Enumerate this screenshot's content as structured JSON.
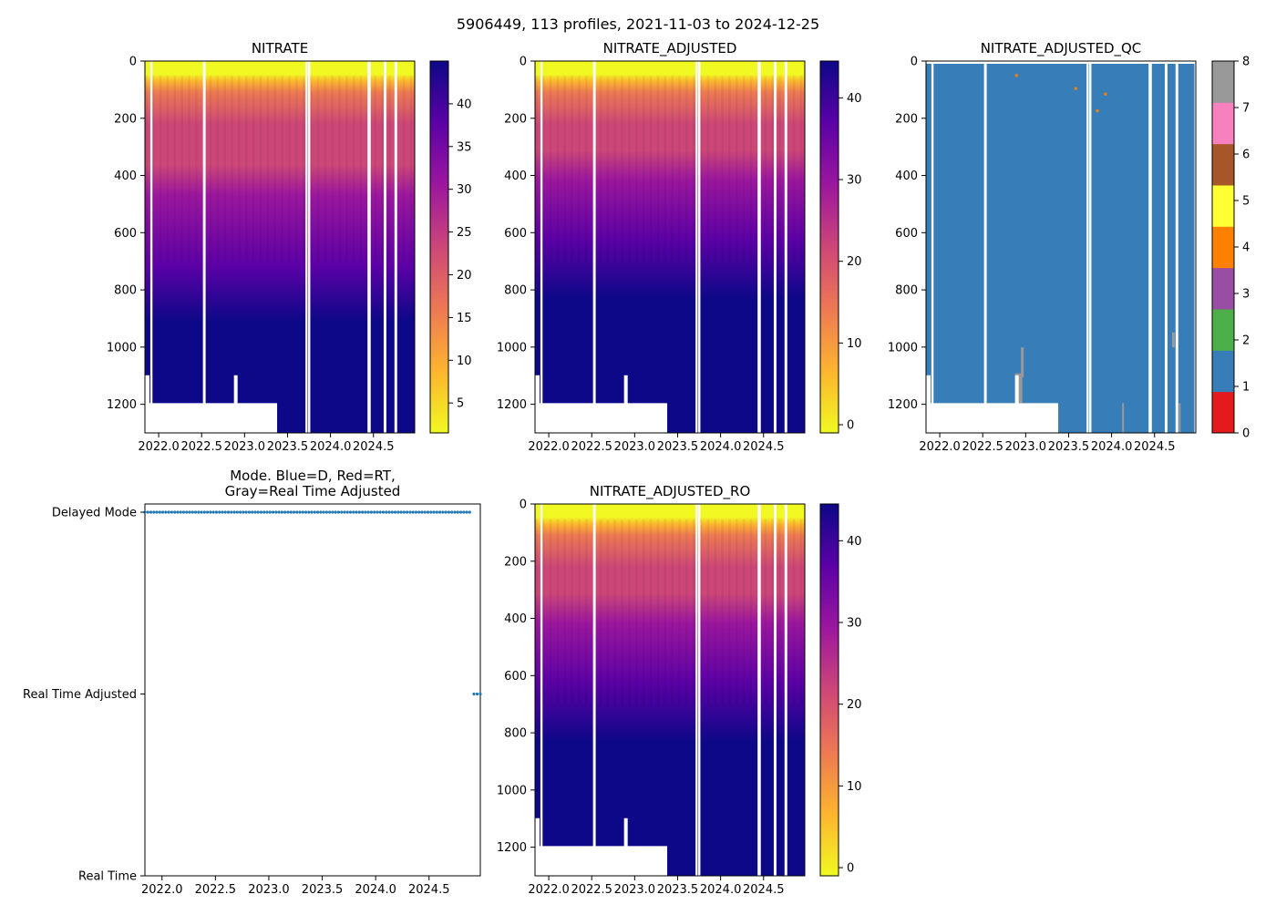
{
  "figure": {
    "suptitle": "5906449, 113 profiles, 2021-11-03 to 2024-12-25"
  },
  "colors": {
    "plasma_r": [
      "#f0f921",
      "#fdb42f",
      "#ed7953",
      "#cc4778",
      "#9c179e",
      "#5c01a6",
      "#0d0887"
    ],
    "qc": [
      "#e41a1c",
      "#377eb8",
      "#4daf4a",
      "#984ea3",
      "#ff7f00",
      "#ffff33",
      "#a65628",
      "#f781bf",
      "#999999"
    ],
    "mode_marker": "#1f77b4"
  },
  "chart_data": [
    {
      "id": "nitrate",
      "type": "heatmap",
      "title": "NITRATE",
      "xlabel": "",
      "ylabel": "",
      "xlim": [
        2021.84,
        2024.98
      ],
      "ylim": [
        1300,
        0
      ],
      "xticks": [
        "2022.0",
        "2022.5",
        "2023.0",
        "2023.5",
        "2024.0",
        "2024.5"
      ],
      "xtick_values": [
        2022.0,
        2022.5,
        2023.0,
        2023.5,
        2024.0,
        2024.5
      ],
      "yticks": [
        "0",
        "200",
        "400",
        "600",
        "800",
        "1000",
        "1200"
      ],
      "ytick_values": [
        0,
        200,
        400,
        600,
        800,
        1000,
        1200
      ],
      "colorbar": {
        "vmin": 1.5,
        "vmax": 45,
        "ticks": [
          "5",
          "10",
          "15",
          "20",
          "25",
          "30",
          "35",
          "40"
        ],
        "tick_values": [
          5,
          10,
          15,
          20,
          25,
          30,
          35,
          40
        ]
      }
    },
    {
      "id": "nitrate_adjusted",
      "type": "heatmap",
      "title": "NITRATE_ADJUSTED",
      "xlabel": "",
      "ylabel": "",
      "xlim": [
        2021.84,
        2024.98
      ],
      "ylim": [
        1300,
        0
      ],
      "xticks": [
        "2022.0",
        "2022.5",
        "2023.0",
        "2023.5",
        "2024.0",
        "2024.5"
      ],
      "xtick_values": [
        2022.0,
        2022.5,
        2023.0,
        2023.5,
        2024.0,
        2024.5
      ],
      "yticks": [
        "0",
        "200",
        "400",
        "600",
        "800",
        "1000",
        "1200"
      ],
      "ytick_values": [
        0,
        200,
        400,
        600,
        800,
        1000,
        1200
      ],
      "colorbar": {
        "vmin": -1,
        "vmax": 44.5,
        "ticks": [
          "0",
          "10",
          "20",
          "30",
          "40"
        ],
        "tick_values": [
          0,
          10,
          20,
          30,
          40
        ]
      }
    },
    {
      "id": "nitrate_adjusted_qc",
      "type": "heatmap",
      "title": "NITRATE_ADJUSTED_QC",
      "xlabel": "",
      "ylabel": "",
      "xlim": [
        2021.84,
        2024.98
      ],
      "ylim": [
        1300,
        0
      ],
      "xticks": [
        "2022.0",
        "2022.5",
        "2023.0",
        "2023.5",
        "2024.0",
        "2024.5"
      ],
      "xtick_values": [
        2022.0,
        2022.5,
        2023.0,
        2023.5,
        2024.0,
        2024.5
      ],
      "yticks": [
        "0",
        "200",
        "400",
        "600",
        "800",
        "1000",
        "1200"
      ],
      "ytick_values": [
        0,
        200,
        400,
        600,
        800,
        1000,
        1200
      ],
      "colorbar": {
        "vmin": 0,
        "vmax": 8,
        "ticks": [
          "0",
          "1",
          "2",
          "3",
          "4",
          "5",
          "6",
          "7",
          "8"
        ],
        "tick_values": [
          0,
          1,
          2,
          3,
          4,
          5,
          6,
          7,
          8
        ]
      },
      "dominant_flag": 1
    },
    {
      "id": "mode",
      "type": "scatter",
      "title": "Mode. Blue=D, Red=RT,\nGray=Real Time Adjusted",
      "xlabel": "",
      "ylabel": "",
      "xlim": [
        2021.84,
        2024.98
      ],
      "ylim": [
        0,
        2
      ],
      "xticks": [
        "2022.0",
        "2022.5",
        "2023.0",
        "2023.5",
        "2024.0",
        "2024.5"
      ],
      "xtick_values": [
        2022.0,
        2022.5,
        2023.0,
        2023.5,
        2024.0,
        2024.5
      ],
      "yticks": [
        "Real Time",
        "Real Time Adjusted",
        "Delayed Mode"
      ],
      "ytick_values": [
        0,
        1,
        2
      ],
      "series": [
        {
          "name": "Delayed Mode",
          "x_start": 2021.84,
          "x_end": 2024.88,
          "count": 110,
          "y": 2
        },
        {
          "name": "Real Time Adjusted",
          "x_start": 2024.92,
          "x_end": 2024.98,
          "count": 3,
          "y": 1
        }
      ]
    },
    {
      "id": "nitrate_adjusted_ro",
      "type": "heatmap",
      "title": "NITRATE_ADJUSTED_RO",
      "xlabel": "",
      "ylabel": "",
      "xlim": [
        2021.84,
        2024.98
      ],
      "ylim": [
        1300,
        0
      ],
      "xticks": [
        "2022.0",
        "2022.5",
        "2023.0",
        "2023.5",
        "2024.0",
        "2024.5"
      ],
      "xtick_values": [
        2022.0,
        2022.5,
        2023.0,
        2023.5,
        2024.0,
        2024.5
      ],
      "yticks": [
        "0",
        "200",
        "400",
        "600",
        "800",
        "1000",
        "1200"
      ],
      "ytick_values": [
        0,
        200,
        400,
        600,
        800,
        1000,
        1200
      ],
      "colorbar": {
        "vmin": -1,
        "vmax": 44.5,
        "ticks": [
          "0",
          "10",
          "20",
          "30",
          "40"
        ],
        "tick_values": [
          0,
          10,
          20,
          30,
          40
        ]
      }
    }
  ]
}
